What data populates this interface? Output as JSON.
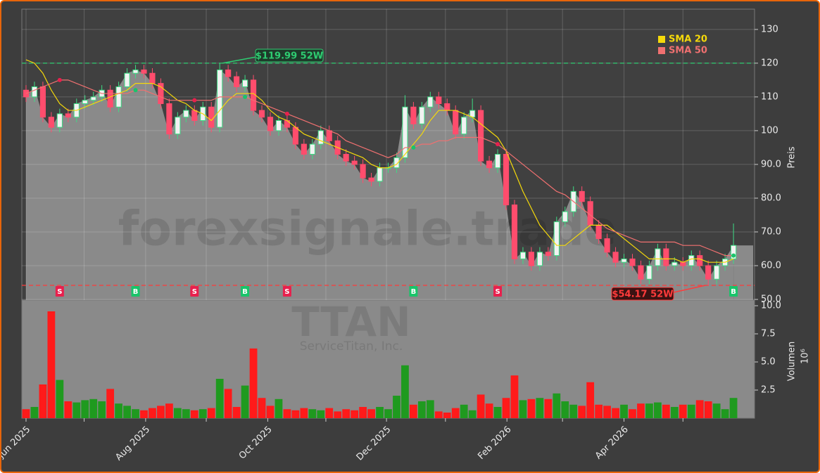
{
  "chart_data": {
    "type": "candlestick",
    "watermark": "forexsignale.trade",
    "ticker": "TTAN",
    "company": "ServiceTitan, Inc.",
    "ylabel": "Preis",
    "y2label": "Volumen",
    "y2_offset": "10⁶",
    "xlim": [
      -0.5,
      86.5
    ],
    "xticks": [
      {
        "value": 0,
        "label": "Jun 2025"
      },
      {
        "value": 6.9,
        "label": null
      },
      {
        "value": 14.2,
        "label": "Aug 2025"
      },
      {
        "value": 21.4,
        "label": null
      },
      {
        "value": 28.7,
        "label": "Oct 2025"
      },
      {
        "value": 35.6,
        "label": null
      },
      {
        "value": 42.8,
        "label": "Dec 2025"
      },
      {
        "value": 49.8,
        "label": null
      },
      {
        "value": 57.1,
        "label": "Feb 2026"
      },
      {
        "value": 63.7,
        "label": null
      },
      {
        "value": 71,
        "label": "Apr 2026"
      },
      {
        "value": 78,
        "label": null
      }
    ],
    "ylim": [
      49.8,
      136
    ],
    "yticks": [
      {
        "value": 50,
        "label": "50.0"
      },
      {
        "value": 60,
        "label": "60.0"
      },
      {
        "value": 70,
        "label": "70.0"
      },
      {
        "value": 80,
        "label": "80.0"
      },
      {
        "value": 90,
        "label": "90.0"
      },
      100,
      110,
      120,
      130
    ],
    "y2lim": [
      0,
      10.5
    ],
    "y2ticks": [
      2.5,
      {
        "value": 5,
        "label": "5.0"
      },
      7.5,
      {
        "value": 10,
        "label": "10.0"
      }
    ],
    "grid": true,
    "legend": "upper right",
    "up_color": "#3ddc84",
    "down_color": "#ff4d6d",
    "volume_up_color": "#1f9a1f",
    "volume_down_color": "#ff1a1a",
    "area_color": "#8a8a8a",
    "open": [
      112,
      110,
      113,
      104,
      101,
      105,
      104,
      108,
      109,
      110,
      112,
      107,
      113,
      117,
      118,
      117,
      114,
      108,
      99,
      104,
      106,
      103,
      107,
      101,
      118,
      116,
      113,
      115,
      106,
      104,
      100,
      103,
      101,
      96,
      93,
      96,
      100,
      97,
      93,
      91,
      90,
      86,
      85,
      89,
      89,
      92,
      107,
      102,
      107,
      110,
      108,
      106,
      99,
      104,
      106,
      91,
      89,
      93,
      78,
      62,
      64,
      60,
      64,
      63,
      73,
      76,
      82,
      79,
      72,
      68,
      64,
      61,
      62,
      60,
      56,
      60,
      65,
      60,
      61,
      60,
      63,
      60,
      56,
      60,
      62
    ],
    "high": [
      113.5,
      114.5,
      114.5,
      105.5,
      106.5,
      106.5,
      109.5,
      110.5,
      111.5,
      113.5,
      113.5,
      114.5,
      118.5,
      119.5,
      119.5,
      118.5,
      115.5,
      109.5,
      105.5,
      107.5,
      107.5,
      108.5,
      108.5,
      119.99,
      119.5,
      117.5,
      116.5,
      116.5,
      107.5,
      105.5,
      104.5,
      104.5,
      102.5,
      97.5,
      97.5,
      101.5,
      101.5,
      98.5,
      94.5,
      92.5,
      91.5,
      87.5,
      90.5,
      90.5,
      93.5,
      110.5,
      108.5,
      108.5,
      111.5,
      111.5,
      109.5,
      107.5,
      105.5,
      109.5,
      107.5,
      92.5,
      94.5,
      94.5,
      79.5,
      65.5,
      65.5,
      65.5,
      65.5,
      74.5,
      77.5,
      83.5,
      83.5,
      80.5,
      73.5,
      69.5,
      65.5,
      63.5,
      63.5,
      61.5,
      61.5,
      66.5,
      66.5,
      62.5,
      62.5,
      64.5,
      64.5,
      61.5,
      61.5,
      63.5,
      72.5
    ],
    "low": [
      108.5,
      108.5,
      102.5,
      99.5,
      99.5,
      102.5,
      102.5,
      106.5,
      107.5,
      108.5,
      105.5,
      105.5,
      111.5,
      115.5,
      115.5,
      112.5,
      106.5,
      97.5,
      97.5,
      102.5,
      101.5,
      101.5,
      99.5,
      99.5,
      114.5,
      111.5,
      111.5,
      104.5,
      102.5,
      98.5,
      98.5,
      99.5,
      94.5,
      91.5,
      91.5,
      94.5,
      95.5,
      91.5,
      89.5,
      88.5,
      84.5,
      83.5,
      83.5,
      87.5,
      87.5,
      90.5,
      100.5,
      100.5,
      105.5,
      106.5,
      104.5,
      97.5,
      97.5,
      102.5,
      89.5,
      87.5,
      87.5,
      76.5,
      60.5,
      60.5,
      58.5,
      58.5,
      61.5,
      61.5,
      71.5,
      74.5,
      77.5,
      70.5,
      66.5,
      62.5,
      59.5,
      59.5,
      58.5,
      54.5,
      54.5,
      58.5,
      58.5,
      58.5,
      58.5,
      58.5,
      58.5,
      54.17,
      54.5,
      58.5,
      60.5
    ],
    "close": [
      110,
      113,
      104,
      101,
      105,
      104,
      108,
      109,
      110,
      112,
      107,
      113,
      117,
      118,
      117,
      114,
      108,
      99,
      104,
      106,
      103,
      107,
      101,
      118,
      116,
      113,
      115,
      106,
      104,
      100,
      103,
      101,
      96,
      93,
      96,
      100,
      97,
      93,
      91,
      90,
      86,
      85,
      89,
      89,
      92,
      107,
      102,
      107,
      110,
      108,
      106,
      99,
      104,
      106,
      91,
      89,
      93,
      78,
      62,
      64,
      60,
      64,
      63,
      73,
      76,
      82,
      79,
      72,
      68,
      64,
      61,
      62,
      60,
      56,
      60,
      65,
      60,
      61,
      60,
      63,
      60,
      56,
      60,
      62,
      66
    ],
    "volume": [
      0.8,
      1.0,
      3.0,
      9.5,
      3.4,
      1.5,
      1.4,
      1.6,
      1.7,
      1.5,
      2.6,
      1.3,
      1.1,
      0.8,
      0.7,
      0.9,
      1.1,
      1.3,
      0.9,
      0.8,
      0.7,
      0.8,
      0.9,
      3.5,
      2.6,
      1.0,
      2.9,
      6.2,
      1.8,
      1.1,
      1.7,
      0.8,
      0.7,
      0.9,
      0.8,
      0.7,
      0.9,
      0.6,
      0.8,
      0.7,
      1.0,
      0.8,
      1.0,
      0.8,
      2.0,
      4.7,
      1.2,
      1.5,
      1.6,
      0.6,
      0.5,
      0.9,
      1.2,
      0.7,
      2.1,
      1.3,
      1.0,
      1.8,
      3.8,
      1.6,
      1.7,
      1.8,
      1.7,
      2.2,
      1.5,
      1.2,
      1.1,
      3.2,
      1.2,
      1.1,
      0.9,
      1.2,
      0.8,
      1.3,
      1.3,
      1.4,
      1.2,
      1.0,
      1.2,
      1.2,
      1.6,
      1.5,
      1.3,
      0.8,
      1.8
    ],
    "series": [
      {
        "name": "SMA 20",
        "color": "#f5d90a",
        "values": [
          121,
          120,
          117,
          112,
          108,
          106,
          106,
          107,
          108,
          109,
          110,
          111,
          112,
          114,
          114,
          114,
          113,
          111,
          109,
          108,
          106,
          105,
          103,
          106,
          109,
          111,
          111,
          111,
          109,
          106,
          104,
          103,
          101,
          99,
          98,
          97,
          96,
          95,
          94,
          93,
          92,
          90,
          89,
          89,
          90,
          93,
          96,
          99,
          103,
          106,
          106,
          106,
          105,
          104,
          102,
          100,
          98,
          94,
          88,
          82,
          77,
          72,
          69,
          66,
          66,
          68,
          70,
          72,
          72,
          72,
          70,
          68,
          66,
          64,
          62,
          62,
          62,
          62,
          61,
          62,
          62,
          61,
          61,
          61,
          62
        ]
      },
      {
        "name": "SMA 50",
        "color": "#f07070",
        "values": [
          111,
          112,
          113,
          114,
          115,
          115,
          114,
          113,
          112,
          111,
          111,
          111,
          111,
          112,
          112,
          111,
          110,
          109,
          109,
          109,
          109,
          109,
          109,
          110,
          110,
          110,
          110,
          109,
          108,
          107,
          106,
          105,
          104,
          103,
          102,
          101,
          100,
          99,
          97,
          96,
          95,
          94,
          93,
          92,
          93,
          95,
          95,
          96,
          96,
          97,
          97,
          98,
          98,
          98,
          98,
          97,
          96,
          94,
          92,
          90,
          88,
          86,
          84,
          82,
          81,
          79,
          77,
          75,
          73,
          71,
          70,
          69,
          68,
          67,
          67,
          67,
          67,
          67,
          66,
          66,
          66,
          65,
          64,
          63,
          63
        ]
      }
    ],
    "signals": [
      {
        "label": "S",
        "x": 4
      },
      {
        "label": "B",
        "x": 13
      },
      {
        "label": "S",
        "x": 20
      },
      {
        "label": "B",
        "x": 26
      },
      {
        "label": "S",
        "x": 31
      },
      {
        "label": "B",
        "x": 46
      },
      {
        "label": "S",
        "x": 56
      },
      {
        "label": "B",
        "x": 84
      }
    ],
    "buy_color": "#19c46a",
    "sell_color": "#e8204d",
    "high_52w": {
      "value": 119.99,
      "label": "$119.99 52W",
      "x": 23,
      "color": "#2ecc71"
    },
    "low_52w": {
      "value": 54.17,
      "label": "$54.17 52W",
      "x": 81,
      "color": "#ff3b3b"
    }
  }
}
